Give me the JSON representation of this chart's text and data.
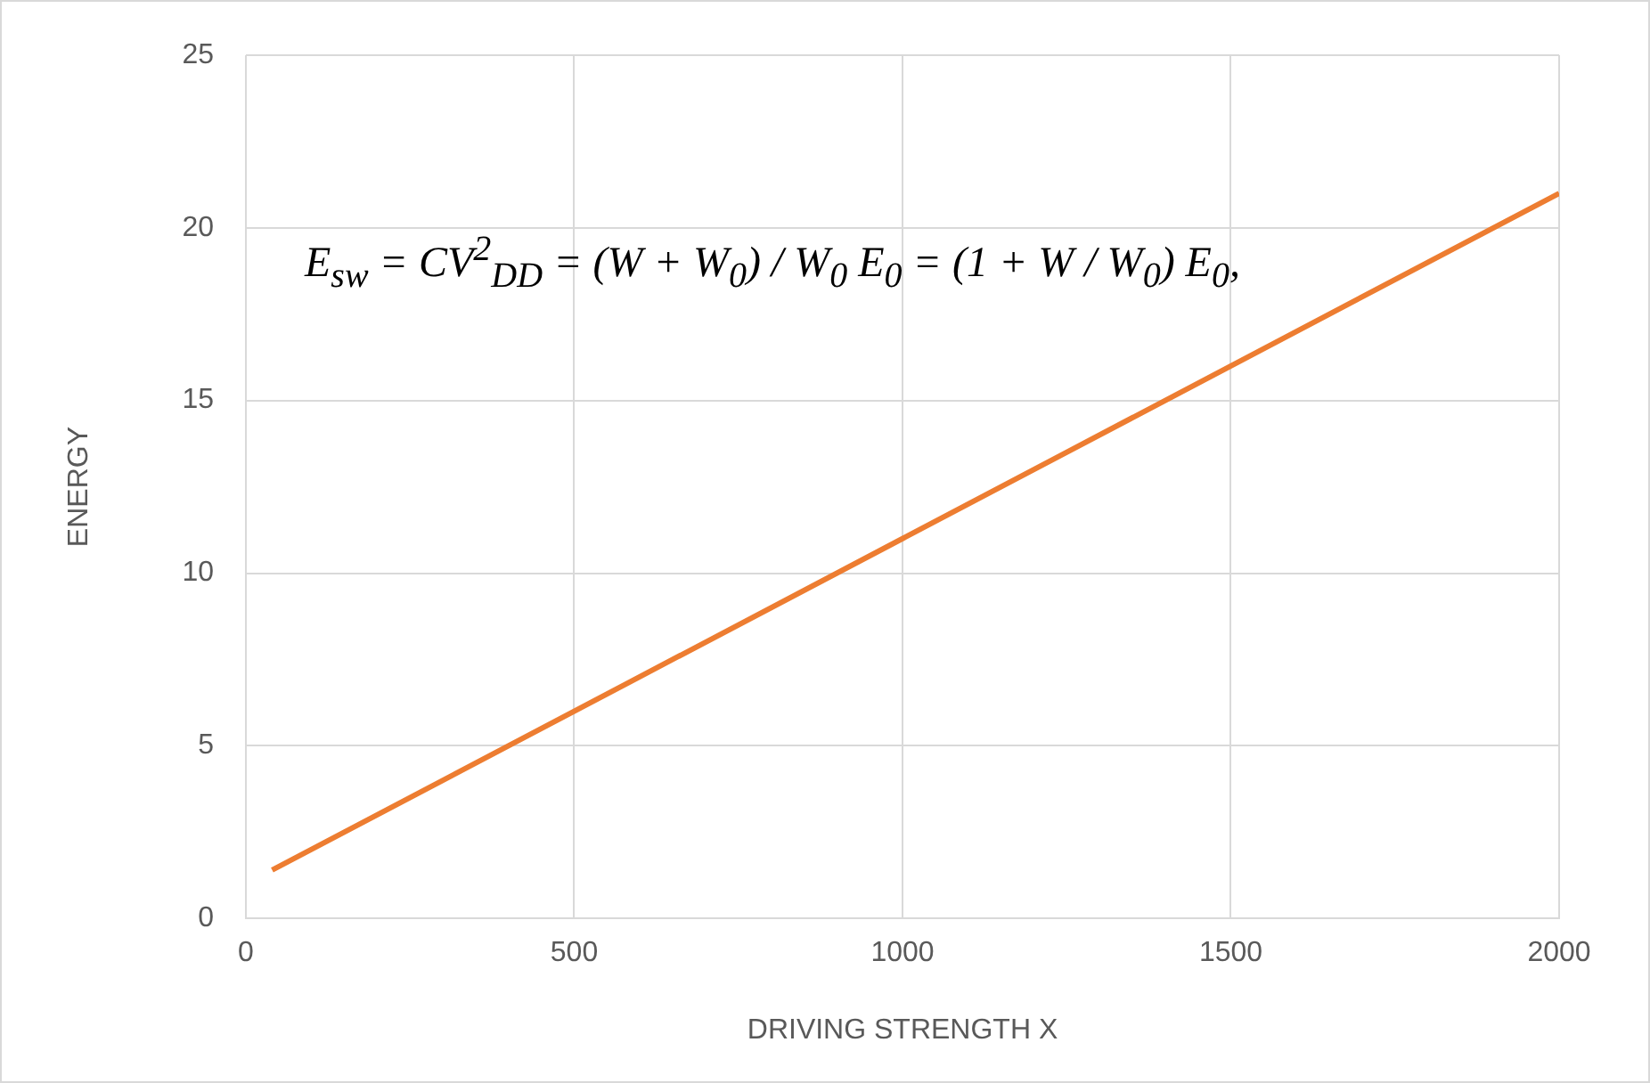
{
  "chart_data": {
    "type": "line",
    "xlabel": "DRIVING STRENGTH X",
    "ylabel": "ENERGY",
    "series": [
      {
        "color": "#ed7d31",
        "x": [
          40,
          1000,
          2000
        ],
        "values": [
          1.4,
          11,
          21
        ]
      }
    ],
    "xlim": [
      0,
      2000
    ],
    "xticks": [
      0,
      500,
      1000,
      1500,
      2000
    ],
    "ylim": [
      0,
      25
    ],
    "yticks": [
      0,
      5,
      10,
      15,
      20,
      25
    ],
    "grid": true,
    "legend": false,
    "marker": "none",
    "line_style": "solid",
    "annotations": [
      "E$_{sw}$ = CV$^{2}$$_{DD}$ = (W + W$_{0}$) / W$_{0}$ E$_{0}$ = (1 + W / W$_{0}$) E$_{0}$,"
    ]
  }
}
